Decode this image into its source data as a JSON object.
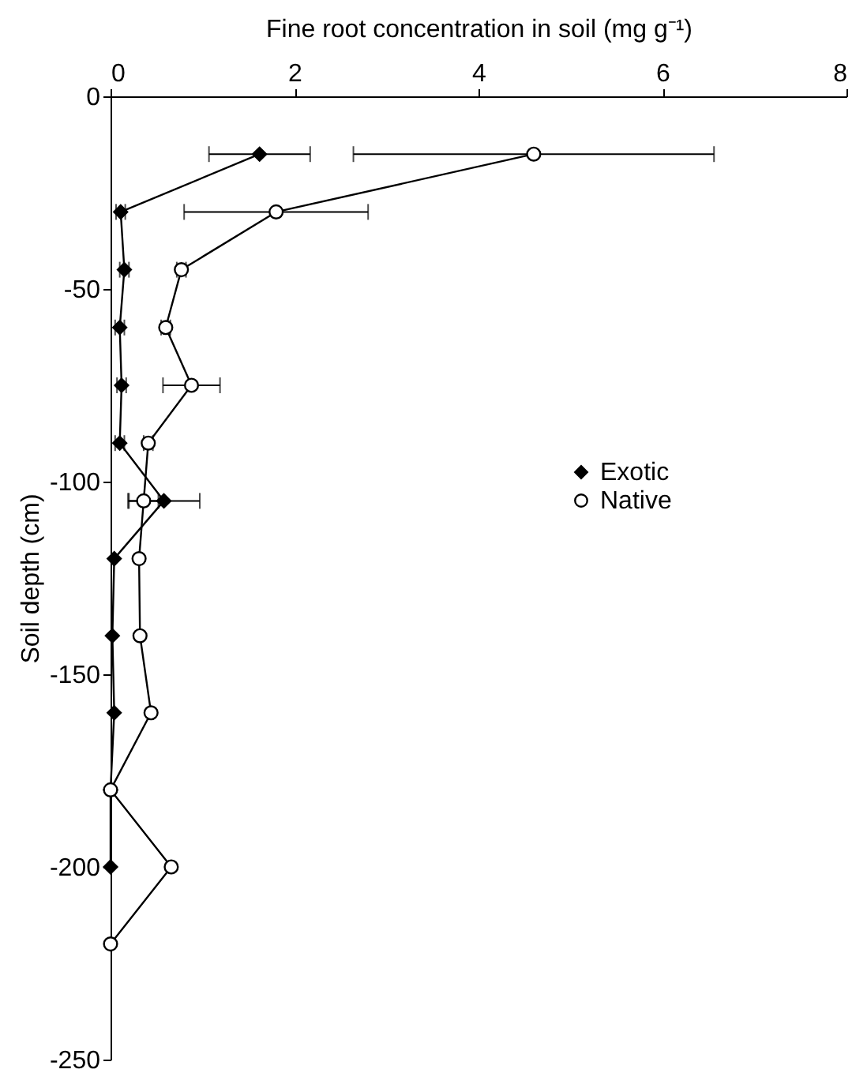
{
  "chart_data": {
    "type": "line",
    "xlabel": "Fine root concentration in soil (mg g⁻¹)",
    "ylabel": "Soil depth (cm)",
    "xlim": [
      0,
      8
    ],
    "xticks": [
      0,
      2,
      4,
      6,
      8
    ],
    "ylim": [
      -250,
      0
    ],
    "yticks": [
      0,
      -50,
      -100,
      -150,
      -200,
      -250
    ],
    "grid": false,
    "legend": "right",
    "line_style": "solid",
    "series": [
      {
        "name": "Exotic",
        "color": "#000000",
        "marker": "diamond",
        "x": [
          1.62,
          0.11,
          0.15,
          0.1,
          0.12,
          0.1,
          0.58,
          0.04,
          0.02,
          0.04,
          0,
          0
        ],
        "values": [
          -15,
          -30,
          -45,
          -60,
          -75,
          -90,
          -105,
          -120,
          -140,
          -160,
          -180,
          -200
        ],
        "xerrors": [
          0.55,
          0.05,
          0.05,
          0.05,
          0.05,
          0.05,
          0.39,
          null,
          null,
          null,
          null,
          null
        ]
      },
      {
        "name": "Native",
        "color": "#000000",
        "marker": "circle",
        "x": [
          4.6,
          1.8,
          0.77,
          0.6,
          0.88,
          0.41,
          0.36,
          0.31,
          0.32,
          0.44,
          0,
          0.66,
          0
        ],
        "values": [
          -15,
          -30,
          -45,
          -60,
          -75,
          -90,
          -105,
          -120,
          -140,
          -160,
          -180,
          -200,
          -220
        ],
        "xerrors": [
          1.96,
          1.0,
          0.05,
          0.05,
          0.31,
          0.05,
          0.16,
          null,
          null,
          null,
          null,
          null,
          null
        ]
      }
    ]
  }
}
